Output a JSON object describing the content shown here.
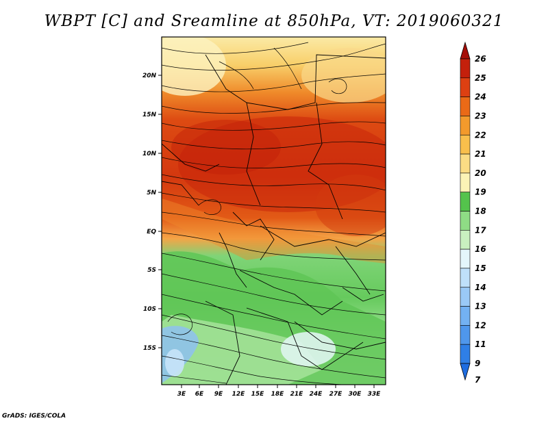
{
  "title": "WBPT [C] and Sreamline at 850hPa, VT: 2019060321",
  "credit": "GrADS: IGES/COLA",
  "map": {
    "lon_ticks": [
      "3E",
      "6E",
      "9E",
      "12E",
      "15E",
      "18E",
      "21E",
      "24E",
      "27E",
      "30E",
      "33E"
    ],
    "lat_ticks": [
      "20N",
      "15N",
      "10N",
      "5N",
      "EQ",
      "5S",
      "10S",
      "15S"
    ]
  },
  "colorbar": {
    "labels": [
      "7",
      "9",
      "11",
      "12",
      "13",
      "14",
      "15",
      "16",
      "17",
      "18",
      "19",
      "20",
      "21",
      "22",
      "23",
      "24",
      "25",
      "26"
    ],
    "colors": [
      "#1f6de0",
      "#2f7fe6",
      "#4f97ec",
      "#73b1f2",
      "#9ac9f6",
      "#bfe0fa",
      "#e4f6fb",
      "#c9f0c0",
      "#8fdc85",
      "#54c34c",
      "#fbf3b6",
      "#fbdc84",
      "#f9bf4c",
      "#f39a2c",
      "#ea6a17",
      "#dd4012",
      "#c4200c",
      "#a50e08"
    ]
  }
}
